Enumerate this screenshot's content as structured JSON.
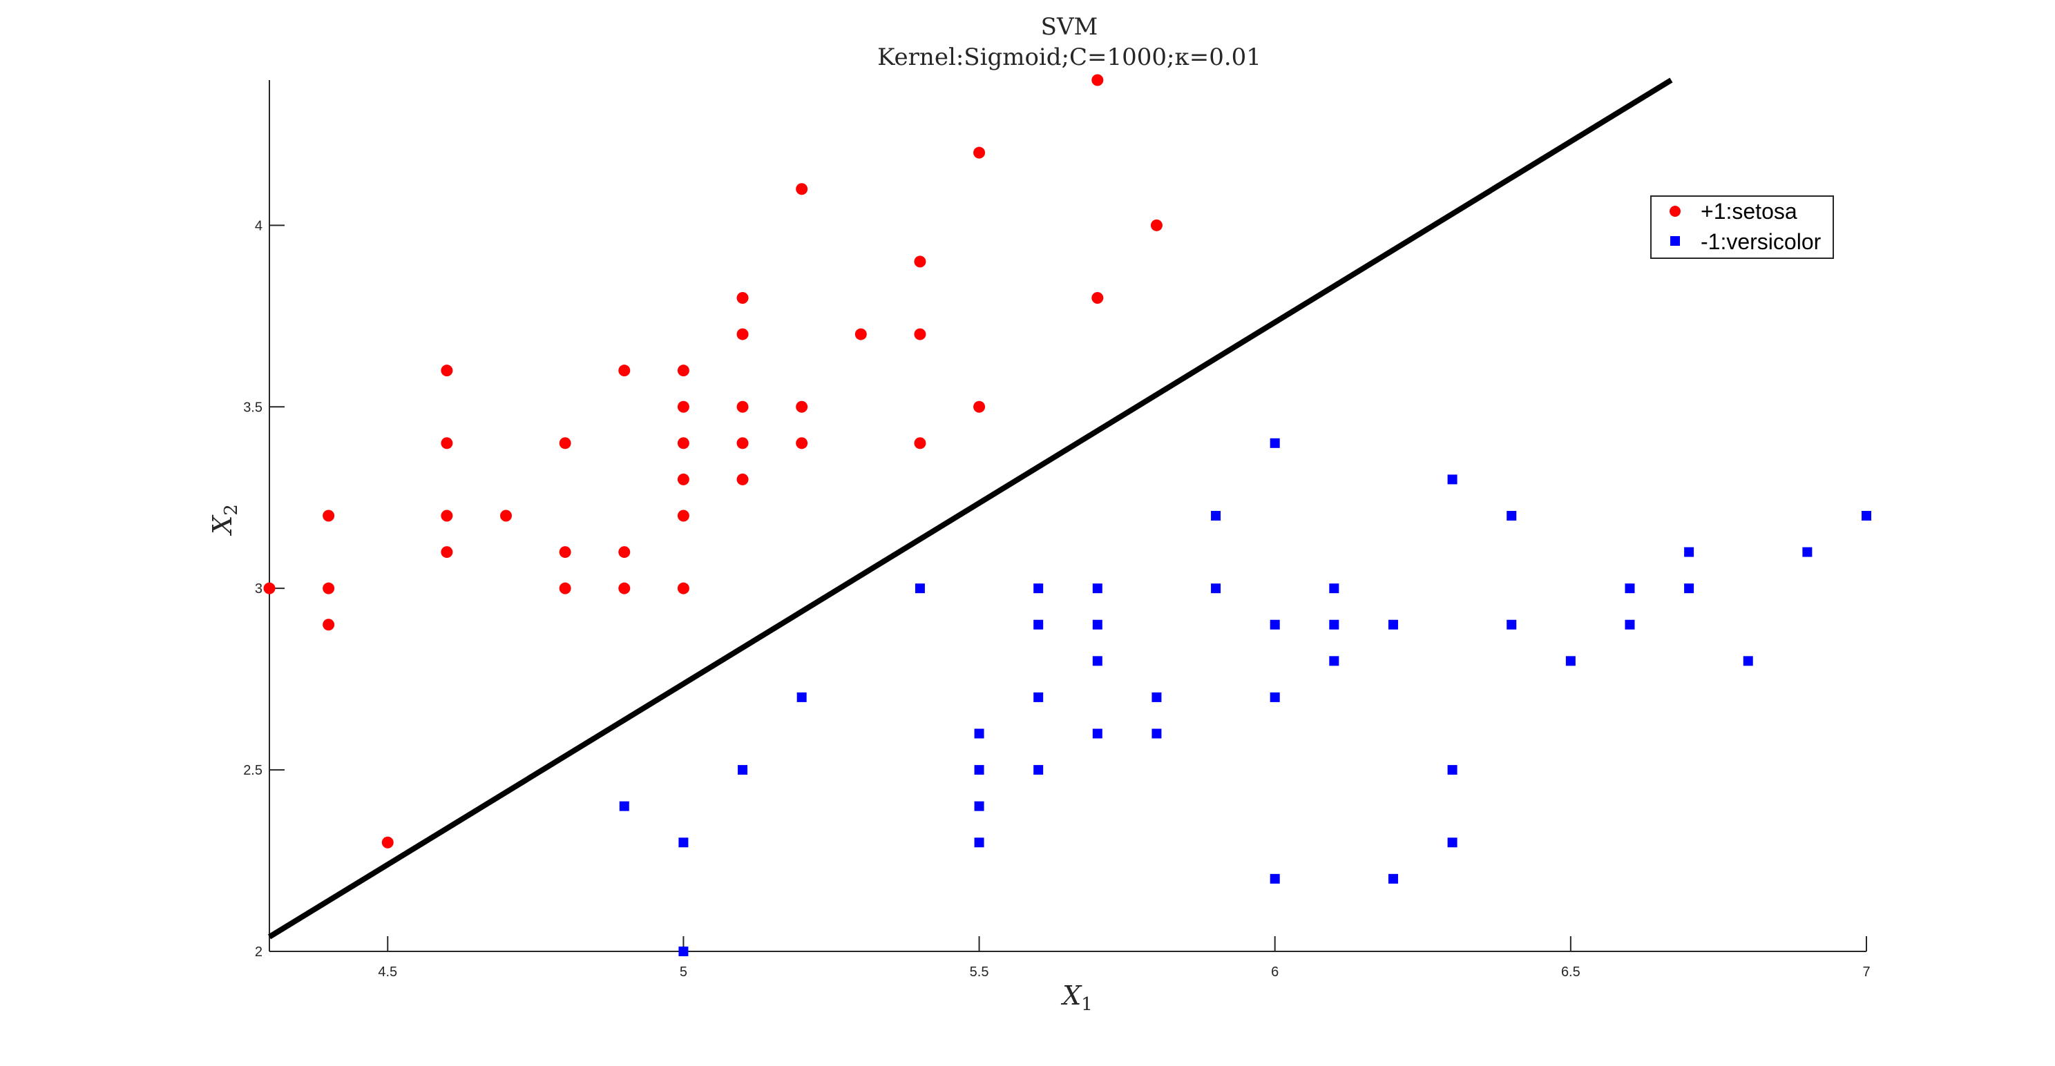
{
  "chart_data": {
    "type": "scatter",
    "title": "SVM",
    "subtitle": "Kernel:Sigmoid;C=1000;κ=0.01",
    "xlabel": {
      "main": "X",
      "sub": "1"
    },
    "ylabel": {
      "main": "X",
      "sub": "2"
    },
    "xlim": [
      4.3,
      7.0
    ],
    "ylim": [
      2.0,
      4.4
    ],
    "xticks": [
      "4.5",
      "5",
      "5.5",
      "6",
      "6.5",
      "7"
    ],
    "xtick_values": [
      4.5,
      5.0,
      5.5,
      6.0,
      6.5,
      7.0
    ],
    "yticks": [
      "2",
      "2.5",
      "3",
      "3.5",
      "4"
    ],
    "ytick_values": [
      2.0,
      2.5,
      3.0,
      3.5,
      4.0
    ],
    "grid": false,
    "legend_position": "top-right",
    "decision_boundary": {
      "x": [
        4.3,
        6.67
      ],
      "y": [
        2.04,
        4.4
      ],
      "color": "#000000"
    },
    "series": [
      {
        "name": "+1:setosa",
        "marker": "circle",
        "color": "#ff0000",
        "points": [
          [
            5.7,
            4.4
          ],
          [
            5.5,
            4.2
          ],
          [
            5.2,
            4.1
          ],
          [
            5.8,
            4.0
          ],
          [
            5.4,
            3.9
          ],
          [
            5.1,
            3.8
          ],
          [
            5.7,
            3.8
          ],
          [
            5.1,
            3.7
          ],
          [
            5.3,
            3.7
          ],
          [
            5.4,
            3.7
          ],
          [
            4.6,
            3.6
          ],
          [
            4.9,
            3.6
          ],
          [
            5.0,
            3.6
          ],
          [
            5.0,
            3.5
          ],
          [
            5.1,
            3.5
          ],
          [
            5.2,
            3.5
          ],
          [
            5.5,
            3.5
          ],
          [
            4.6,
            3.4
          ],
          [
            4.8,
            3.4
          ],
          [
            5.0,
            3.4
          ],
          [
            5.1,
            3.4
          ],
          [
            5.2,
            3.4
          ],
          [
            5.4,
            3.4
          ],
          [
            5.0,
            3.3
          ],
          [
            5.1,
            3.3
          ],
          [
            4.4,
            3.2
          ],
          [
            4.6,
            3.2
          ],
          [
            4.7,
            3.2
          ],
          [
            5.0,
            3.2
          ],
          [
            4.6,
            3.1
          ],
          [
            4.8,
            3.1
          ],
          [
            4.9,
            3.1
          ],
          [
            4.3,
            3.0
          ],
          [
            4.4,
            3.0
          ],
          [
            4.8,
            3.0
          ],
          [
            4.9,
            3.0
          ],
          [
            5.0,
            3.0
          ],
          [
            4.4,
            2.9
          ],
          [
            4.5,
            2.3
          ]
        ]
      },
      {
        "name": "-1:versicolor",
        "marker": "square",
        "color": "#0000ff",
        "points": [
          [
            6.0,
            3.4
          ],
          [
            6.3,
            3.3
          ],
          [
            5.9,
            3.2
          ],
          [
            6.4,
            3.2
          ],
          [
            7.0,
            3.2
          ],
          [
            6.7,
            3.1
          ],
          [
            6.9,
            3.1
          ],
          [
            5.4,
            3.0
          ],
          [
            5.6,
            3.0
          ],
          [
            5.7,
            3.0
          ],
          [
            5.9,
            3.0
          ],
          [
            6.1,
            3.0
          ],
          [
            6.6,
            3.0
          ],
          [
            6.7,
            3.0
          ],
          [
            5.6,
            2.9
          ],
          [
            5.7,
            2.9
          ],
          [
            6.0,
            2.9
          ],
          [
            6.1,
            2.9
          ],
          [
            6.2,
            2.9
          ],
          [
            6.4,
            2.9
          ],
          [
            6.6,
            2.9
          ],
          [
            5.7,
            2.8
          ],
          [
            6.1,
            2.8
          ],
          [
            6.5,
            2.8
          ],
          [
            6.8,
            2.8
          ],
          [
            5.2,
            2.7
          ],
          [
            5.6,
            2.7
          ],
          [
            5.8,
            2.7
          ],
          [
            6.0,
            2.7
          ],
          [
            5.5,
            2.6
          ],
          [
            5.7,
            2.6
          ],
          [
            5.8,
            2.6
          ],
          [
            5.1,
            2.5
          ],
          [
            5.5,
            2.5
          ],
          [
            5.6,
            2.5
          ],
          [
            6.3,
            2.5
          ],
          [
            4.9,
            2.4
          ],
          [
            5.5,
            2.4
          ],
          [
            5.0,
            2.3
          ],
          [
            5.5,
            2.3
          ],
          [
            6.3,
            2.3
          ],
          [
            6.0,
            2.2
          ],
          [
            6.2,
            2.2
          ],
          [
            5.0,
            2.0
          ]
        ]
      }
    ]
  }
}
